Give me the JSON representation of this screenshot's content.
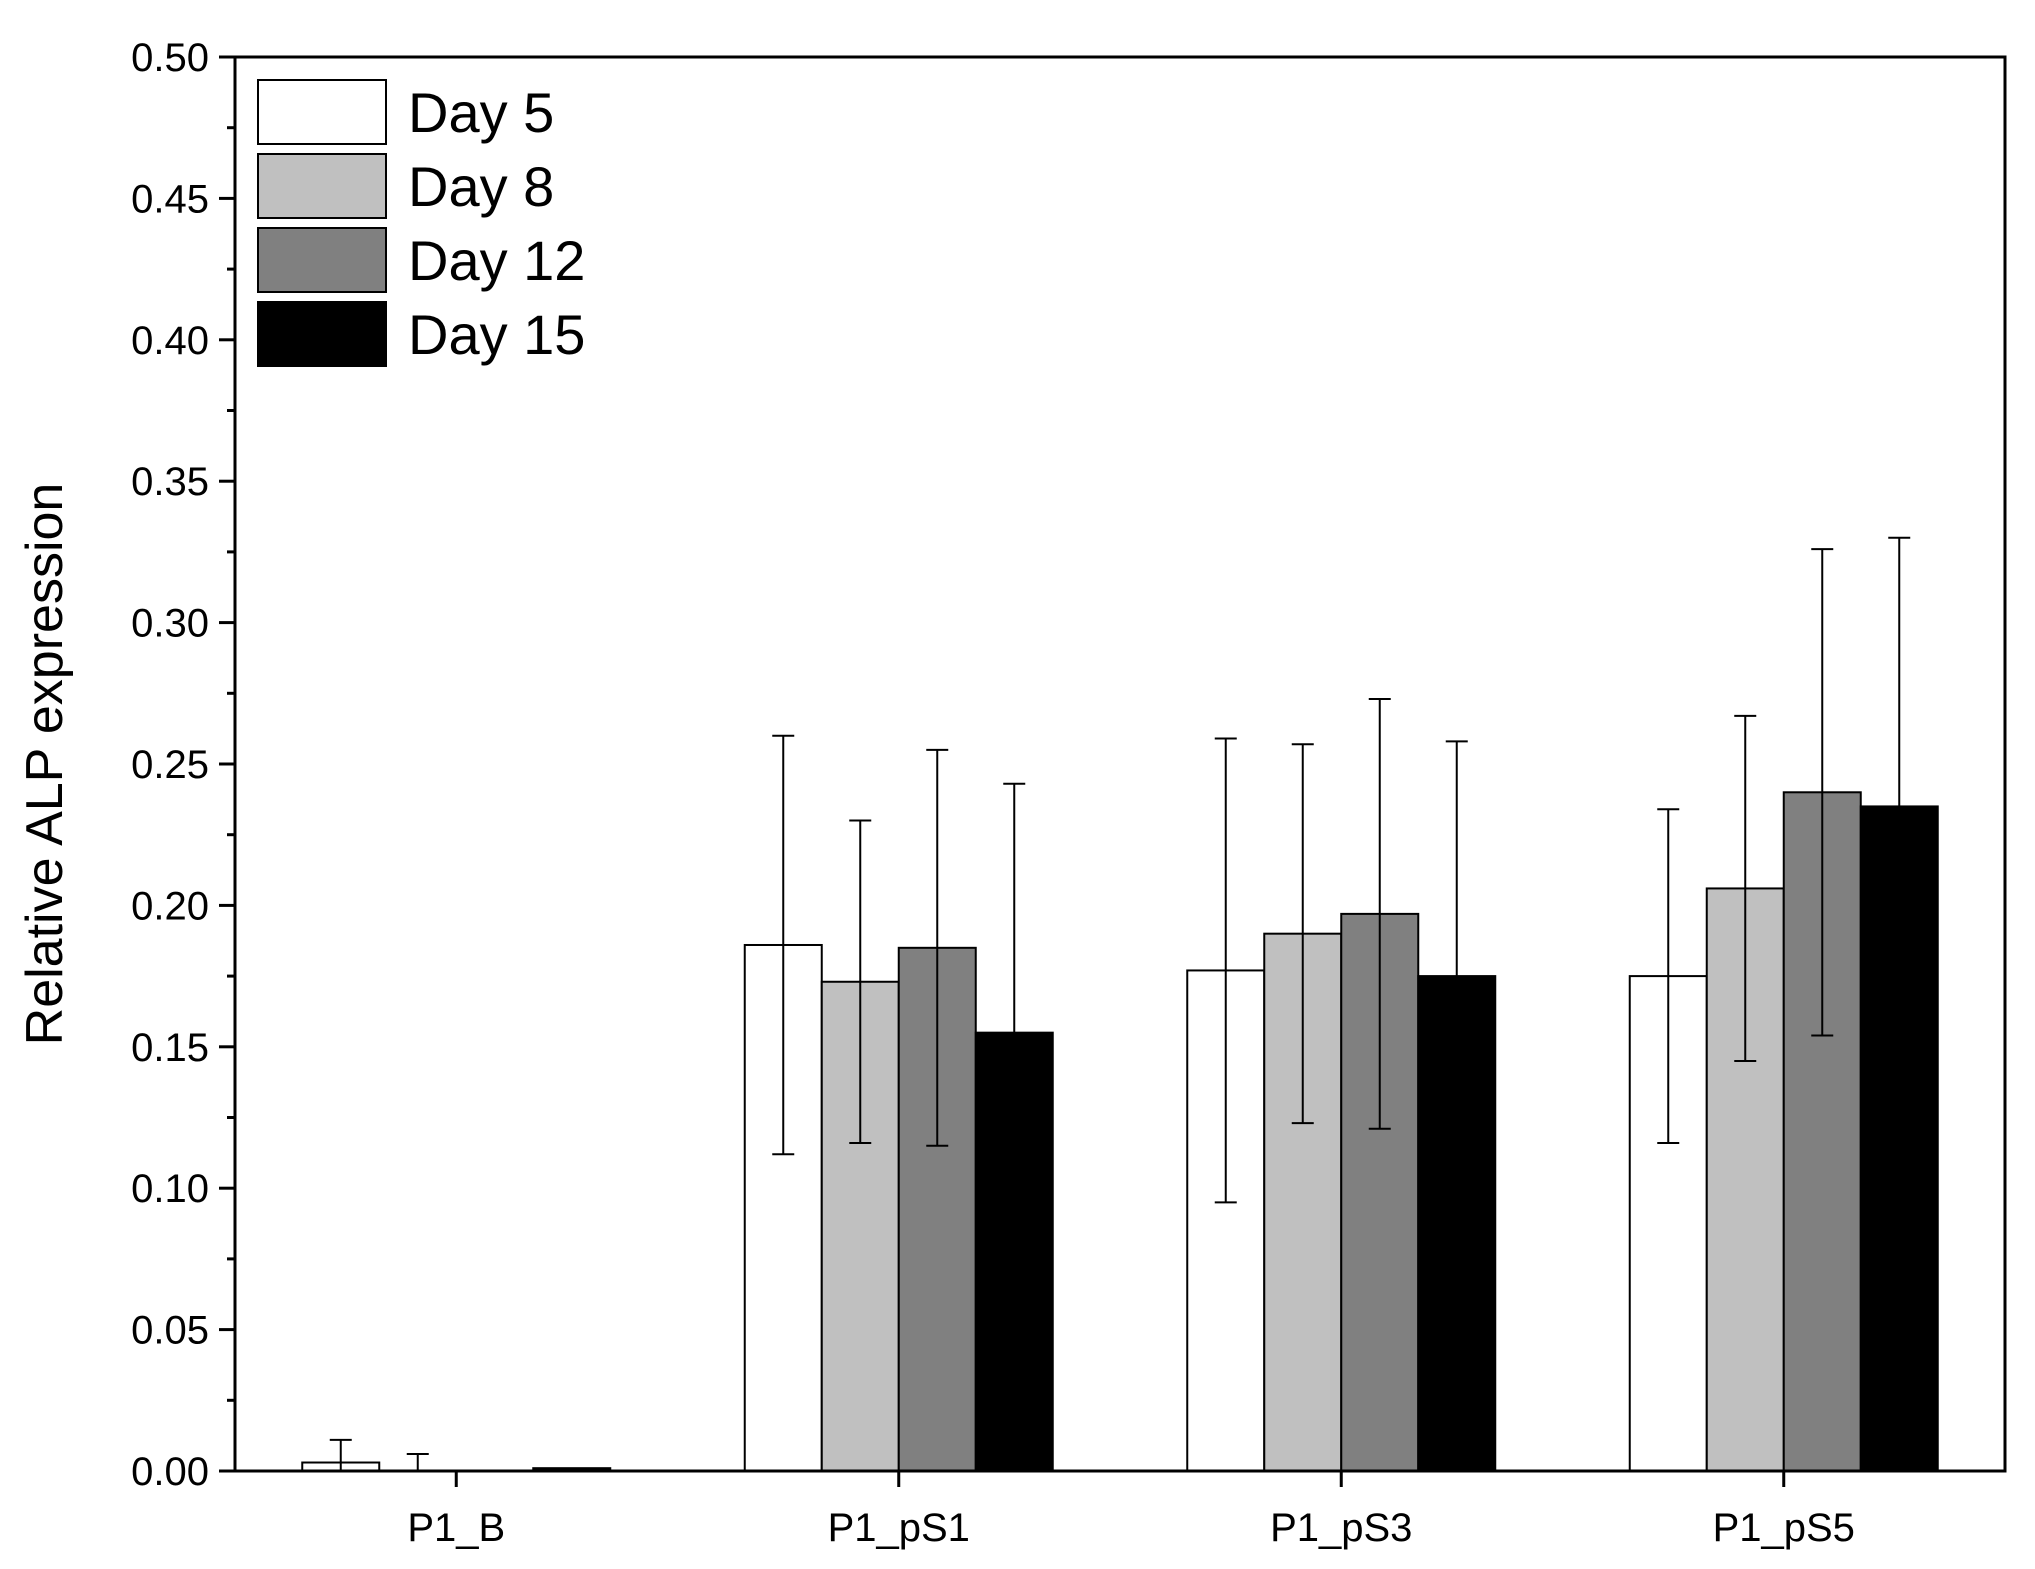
{
  "chart_data": {
    "type": "bar",
    "title": "",
    "xlabel": "",
    "ylabel": "Relative ALP expression",
    "ylim": [
      0,
      0.5
    ],
    "yticks": [
      "0.00",
      "0.05",
      "0.10",
      "0.15",
      "0.20",
      "0.25",
      "0.30",
      "0.35",
      "0.40",
      "0.45",
      "0.50"
    ],
    "categories": [
      "P1_B",
      "P1_pS1",
      "P1_pS3",
      "P1_pS5"
    ],
    "legend_position": "top-left",
    "series": [
      {
        "name": "Day 5",
        "color": "#ffffff",
        "values": [
          0.003,
          0.186,
          0.177,
          0.175
        ],
        "errors": [
          0.008,
          0.074,
          0.082,
          0.059
        ]
      },
      {
        "name": "Day 8",
        "color": "#c0c0c0",
        "values": [
          0.0,
          0.173,
          0.19,
          0.206
        ],
        "errors": [
          0.006,
          0.057,
          0.067,
          0.061
        ]
      },
      {
        "name": "Day 12",
        "color": "#808080",
        "values": [
          0.0,
          0.185,
          0.197,
          0.24
        ],
        "errors": [
          0.0,
          0.07,
          0.076,
          0.086
        ]
      },
      {
        "name": "Day 15",
        "color": "#000000",
        "values": [
          0.001,
          0.155,
          0.175,
          0.235
        ],
        "errors": [
          0.0,
          0.088,
          0.083,
          0.095
        ]
      }
    ]
  }
}
